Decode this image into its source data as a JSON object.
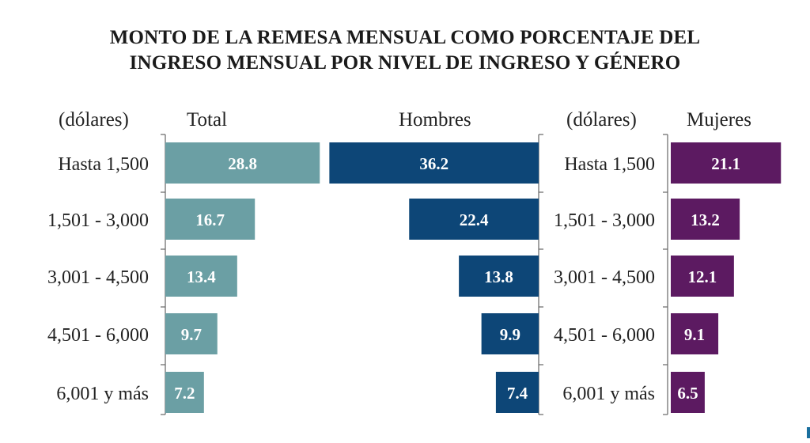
{
  "chart_data": {
    "type": "bar",
    "title": "MONTO DE  LA  REMESA  MENSUAL COMO  PORCENTAJE  DEL",
    "subtitle": "INGRESO MENSUAL POR NIVEL DE  INGRESO Y GÉNERO",
    "unit_label": "(dólares)",
    "categories": [
      "Hasta 1,500",
      "1,501 - 3,000",
      "3,001 - 4,500",
      "4,501 - 6,000",
      "6,001 y más"
    ],
    "series": [
      {
        "name": "Total",
        "color": "#6b9fa4",
        "values": [
          28.8,
          16.7,
          13.4,
          9.7,
          7.2
        ]
      },
      {
        "name": "Hombres",
        "color": "#0d4677",
        "values": [
          36.2,
          22.4,
          13.8,
          9.9,
          7.4
        ]
      },
      {
        "name": "Mujeres",
        "color": "#5c1a61",
        "values": [
          21.1,
          13.2,
          12.1,
          9.1,
          6.5
        ]
      }
    ]
  }
}
